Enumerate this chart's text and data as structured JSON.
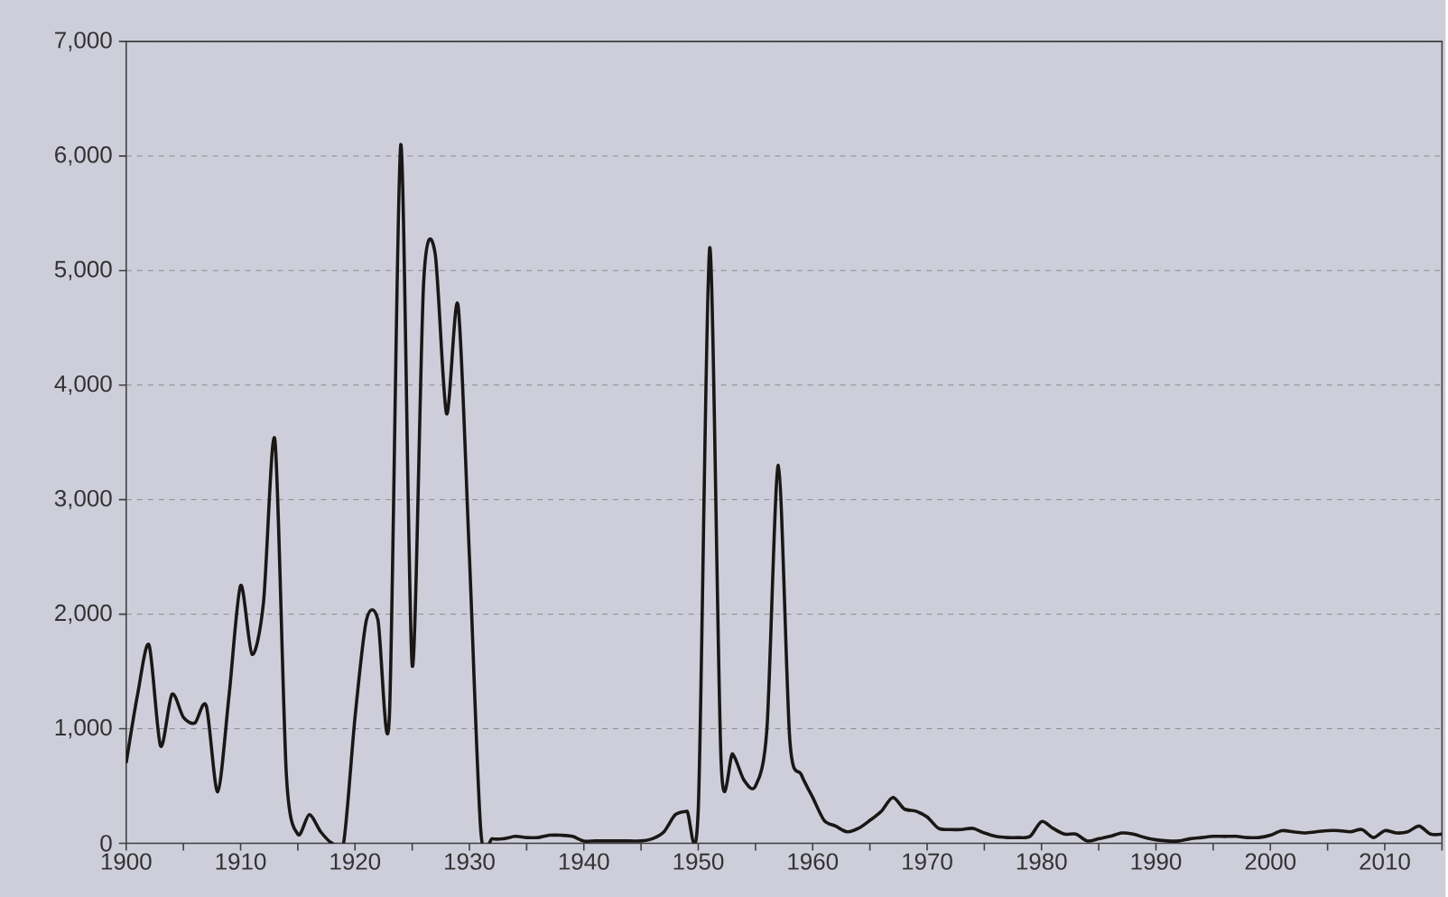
{
  "chart_data": {
    "type": "line",
    "color": "#1a1714",
    "grid": "y",
    "marker": "none",
    "line_style": "solid",
    "x": [
      1900,
      1901,
      1902,
      1903,
      1904,
      1905,
      1906,
      1907,
      1908,
      1909,
      1910,
      1911,
      1912,
      1913,
      1914,
      1915,
      1916,
      1917,
      1918,
      1919,
      1920,
      1921,
      1922,
      1923,
      1924,
      1925,
      1926,
      1927,
      1928,
      1929,
      1930,
      1931,
      1932,
      1933,
      1934,
      1935,
      1936,
      1937,
      1938,
      1939,
      1940,
      1941,
      1942,
      1943,
      1944,
      1945,
      1946,
      1947,
      1948,
      1949,
      1950,
      1951,
      1952,
      1953,
      1954,
      1955,
      1956,
      1957,
      1958,
      1959,
      1960,
      1961,
      1962,
      1963,
      1964,
      1965,
      1966,
      1967,
      1968,
      1969,
      1970,
      1971,
      1972,
      1973,
      1974,
      1975,
      1976,
      1977,
      1978,
      1979,
      1980,
      1981,
      1982,
      1983,
      1984,
      1985,
      1986,
      1987,
      1988,
      1989,
      1990,
      1991,
      1992,
      1993,
      1994,
      1995,
      1996,
      1997,
      1998,
      1999,
      2000,
      2001,
      2002,
      2003,
      2004,
      2005,
      2006,
      2007,
      2008,
      2009,
      2010,
      2011,
      2012,
      2013,
      2014,
      2015
    ],
    "values": [
      700,
      1300,
      1730,
      850,
      1300,
      1100,
      1050,
      1200,
      450,
      1300,
      2250,
      1650,
      2100,
      3520,
      600,
      80,
      250,
      100,
      0,
      0,
      1100,
      1950,
      1950,
      1100,
      6100,
      1550,
      4900,
      5150,
      3750,
      4700,
      2500,
      100,
      40,
      40,
      60,
      50,
      50,
      70,
      70,
      60,
      20,
      20,
      20,
      20,
      20,
      20,
      40,
      100,
      250,
      280,
      300,
      5200,
      700,
      780,
      550,
      500,
      1000,
      3300,
      900,
      600,
      400,
      200,
      150,
      100,
      130,
      200,
      280,
      400,
      300,
      280,
      230,
      130,
      120,
      120,
      130,
      90,
      60,
      50,
      50,
      60,
      190,
      130,
      80,
      80,
      20,
      40,
      60,
      90,
      80,
      50,
      30,
      20,
      20,
      40,
      50,
      60,
      60,
      60,
      50,
      50,
      70,
      110,
      100,
      90,
      100,
      110,
      110,
      100,
      120,
      50,
      110,
      90,
      100,
      150,
      80,
      80
    ],
    "xlim": [
      1900,
      2015
    ],
    "xticks": [
      1900,
      {
        "value": 1905,
        "label": null
      },
      1910,
      {
        "value": 1915,
        "label": null
      },
      1920,
      {
        "value": 1925,
        "label": null
      },
      1930,
      {
        "value": 1935,
        "label": null
      },
      1940,
      {
        "value": 1945,
        "label": null
      },
      1950,
      {
        "value": 1955,
        "label": null
      },
      1960,
      {
        "value": 1965,
        "label": null
      },
      1970,
      {
        "value": 1975,
        "label": null
      },
      1980,
      {
        "value": 1985,
        "label": null
      },
      1990,
      {
        "value": 1995,
        "label": null
      },
      2000,
      {
        "value": 2005,
        "label": null
      },
      2010,
      {
        "value": 2015,
        "label": null
      }
    ],
    "ylim": [
      0,
      7000
    ],
    "yticks": [
      0,
      {
        "value": 1000,
        "label": "1,000"
      },
      {
        "value": 2000,
        "label": "2,000"
      },
      {
        "value": 3000,
        "label": "3,000"
      },
      {
        "value": 4000,
        "label": "4,000"
      },
      {
        "value": 5000,
        "label": "5,000"
      },
      {
        "value": 6000,
        "label": "6,000"
      },
      {
        "value": 7000,
        "label": "7,000"
      }
    ]
  }
}
